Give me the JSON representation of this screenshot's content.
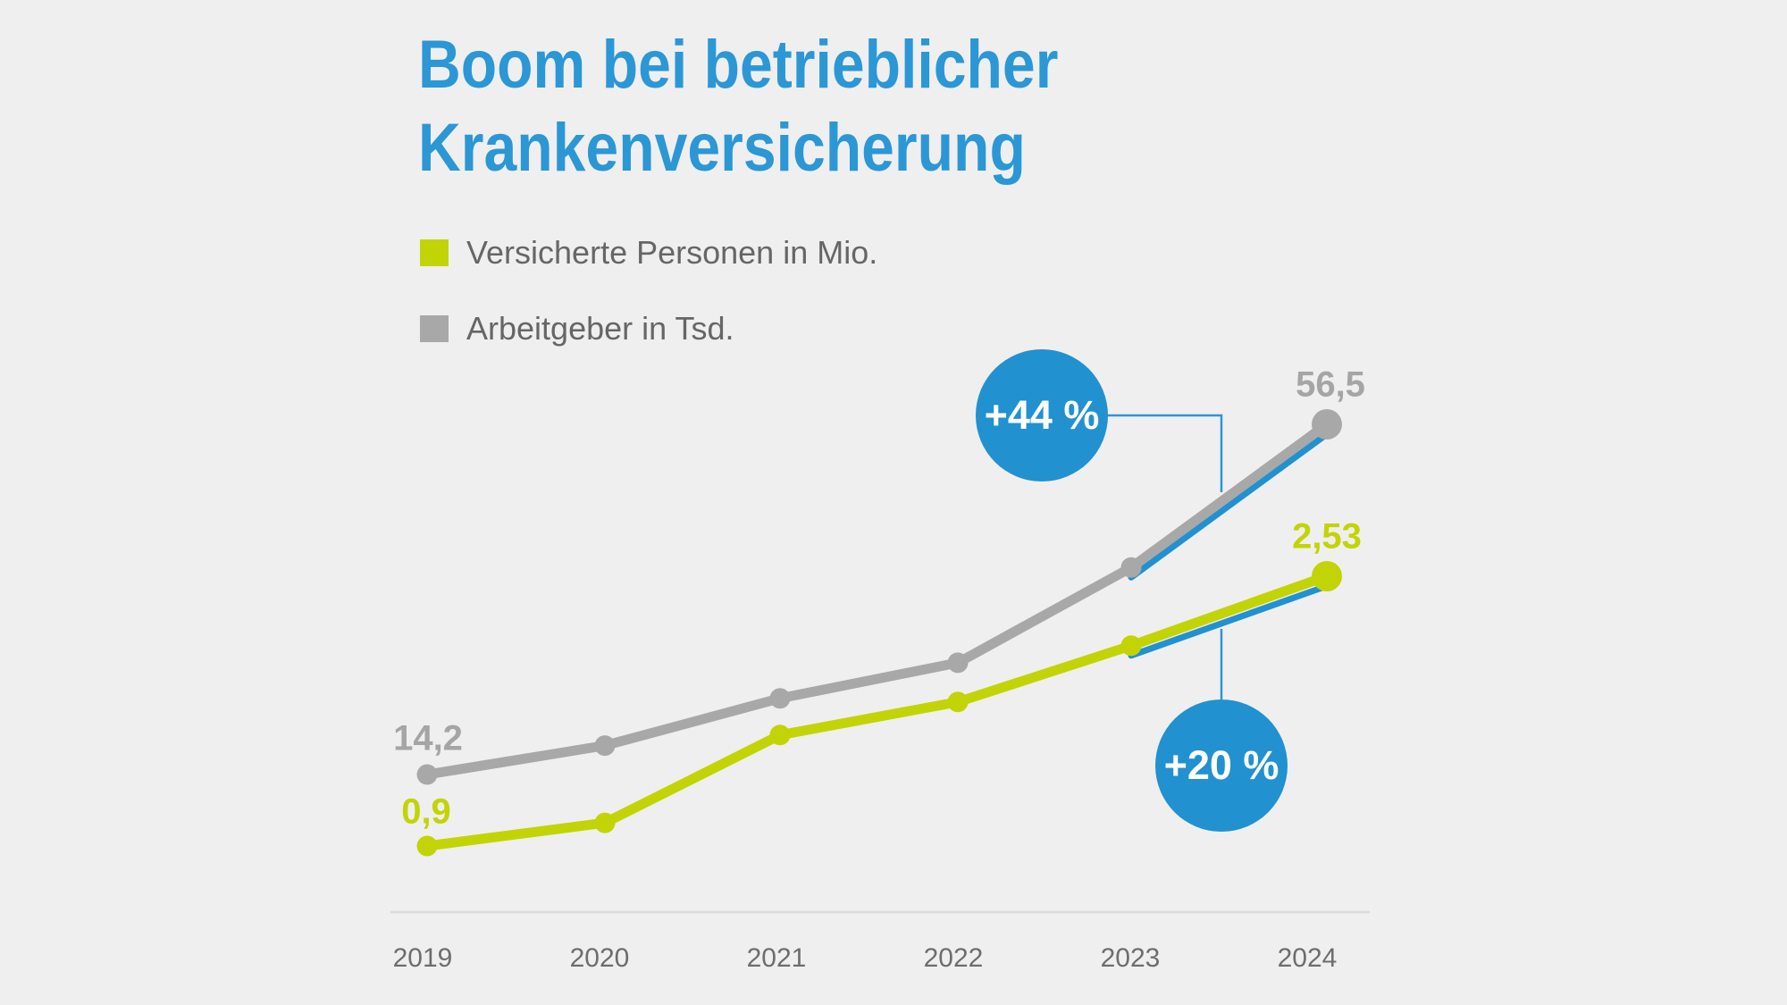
{
  "title": {
    "line1": "Boom bei betrieblicher",
    "line2": "Krankenversicherung"
  },
  "legend": {
    "items": [
      {
        "label": "Versicherte Personen in Mio.",
        "color": "#c2d405"
      },
      {
        "label": "Arbeitgeber in Tsd.",
        "color": "#a8a8a8"
      }
    ]
  },
  "labels": {
    "arbeitgeber_start": "14,2",
    "arbeitgeber_end": "56,5",
    "versicherte_start": "0,9",
    "versicherte_end": "2,53"
  },
  "badges": {
    "arbeitgeber": "+44 %",
    "versicherte": "+20 %"
  },
  "colors": {
    "background": "#efefef",
    "title_blue": "#2b97d5",
    "accent_blue": "#2191d0",
    "green": "#c2d405",
    "gray": "#a8a8a8",
    "label_gray": "#a5a5a5",
    "axis_line": "#dcdcdc"
  },
  "chart_data": {
    "type": "line",
    "title": "Boom bei betrieblicher Krankenversicherung",
    "x": [
      2019,
      2020,
      2021,
      2022,
      2023,
      2024
    ],
    "series": [
      {
        "name": "Versicherte Personen in Mio.",
        "color": "#c2d405",
        "values": [
          0.9,
          1.04,
          1.57,
          1.77,
          2.11,
          2.53
        ]
      },
      {
        "name": "Arbeitgeber in Tsd.",
        "color": "#a8a8a8",
        "values": [
          14.2,
          17.7,
          23.4,
          27.7,
          39.2,
          56.5
        ]
      }
    ],
    "annotations": [
      {
        "text": "+44 %",
        "series": "Arbeitgeber in Tsd.",
        "applies_to": "2023-2024"
      },
      {
        "text": "+20 %",
        "series": "Versicherte Personen in Mio.",
        "applies_to": "2023-2024"
      }
    ],
    "legend_position": "top-left",
    "grid": false,
    "labeled_points": {
      "Versicherte Personen in Mio.": {
        "2019": "0,9",
        "2024": "2,53"
      },
      "Arbeitgeber in Tsd.": {
        "2019": "14,2",
        "2024": "56,5"
      }
    }
  }
}
